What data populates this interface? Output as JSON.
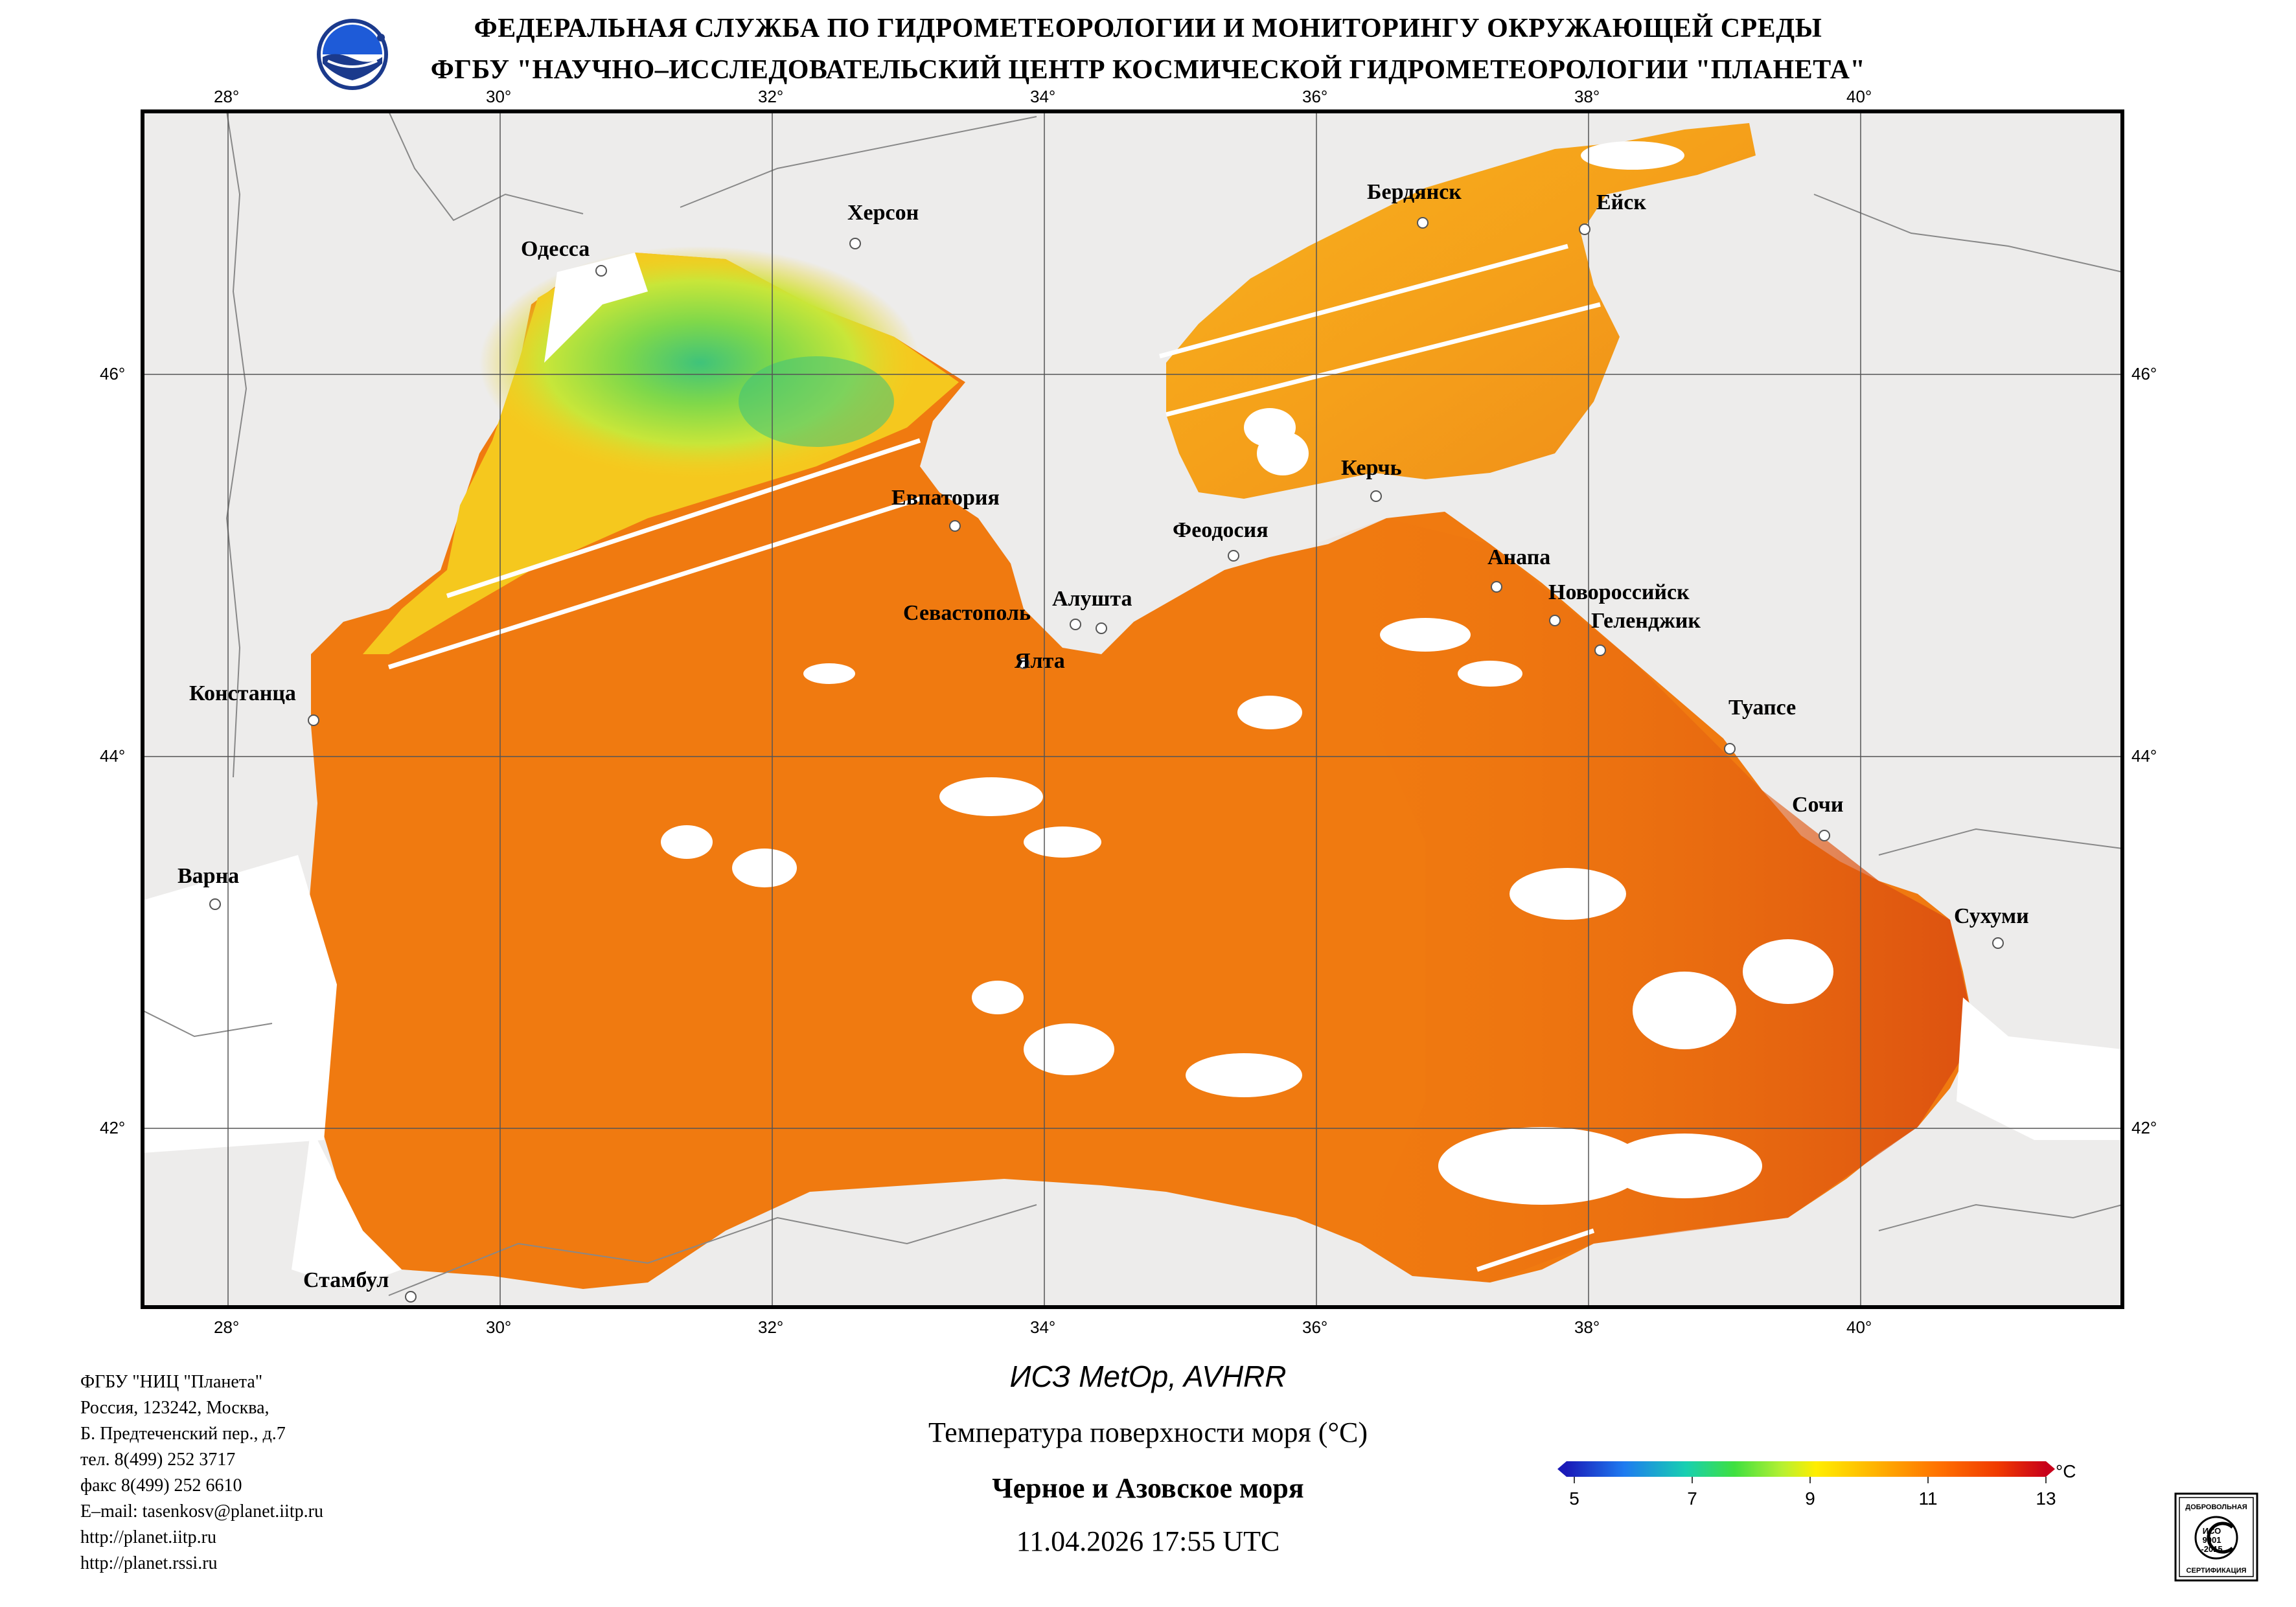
{
  "header": {
    "line1": "ФЕДЕРАЛЬНАЯ СЛУЖБА ПО ГИДРОМЕТЕОРОЛОГИИ И МОНИТОРИНГУ ОКРУЖАЮЩЕЙ СРЕДЫ",
    "line2": "ФГБУ \"НАУЧНО–ИССЛЕДОВАТЕЛЬСКИЙ ЦЕНТР КОСМИЧЕСКОЙ ГИДРОМЕТЕОРОЛОГИИ \"ПЛАНЕТА\""
  },
  "map": {
    "lon_labels": [
      "28°",
      "30°",
      "32°",
      "34°",
      "36°",
      "38°",
      "40°"
    ],
    "lat_labels": [
      "46°",
      "44°",
      "42°"
    ],
    "cities": [
      {
        "name": "Одесса"
      },
      {
        "name": "Херсон"
      },
      {
        "name": "Бердянск"
      },
      {
        "name": "Ейск"
      },
      {
        "name": "Евпатория"
      },
      {
        "name": "Керчь"
      },
      {
        "name": "Феодосия"
      },
      {
        "name": "Анапа"
      },
      {
        "name": "Новороссийск"
      },
      {
        "name": "Геленджик"
      },
      {
        "name": "Севастополь"
      },
      {
        "name": "Алушта"
      },
      {
        "name": "Ялта"
      },
      {
        "name": "Констанца"
      },
      {
        "name": "Туапсе"
      },
      {
        "name": "Сочи"
      },
      {
        "name": "Варна"
      },
      {
        "name": "Сухуми"
      },
      {
        "name": "Стамбул"
      }
    ],
    "colors": {
      "land": "#edeceb",
      "sea_main": "#f07a10",
      "sea_warm": "#e2560e",
      "sea_cool": "#f5b31c",
      "sea_cold": "#c8e639",
      "sea_coldest": "#3fc37a",
      "cloud": "#ffffff"
    }
  },
  "footer": {
    "org_lines": [
      "ФГБУ \"НИЦ \"Планета\"",
      "Россия, 123242, Москва,",
      "Б. Предтеченский пер., д.7",
      "тел. 8(499) 252 3717",
      "факс 8(499) 252 6610",
      "E–mail: tasenkosv@planet.iitp.ru",
      "http://planet.iitp.ru",
      "http://planet.rssi.ru"
    ],
    "satellite": "ИСЗ MetOp, AVHRR",
    "parameter": "Температура поверхности моря (°C)",
    "region": "Черное и Азовское моря",
    "datetime": "11.04.2026 17:55 UTC"
  },
  "legend": {
    "unit": "°C",
    "ticks": [
      "5",
      "7",
      "9",
      "11",
      "13"
    ],
    "min": 5,
    "max": 13,
    "colors": [
      "#1a1ab8",
      "#1e7bf0",
      "#18d0b0",
      "#3fe040",
      "#b6f032",
      "#ffee00",
      "#ffb000",
      "#ff7000",
      "#f03a00",
      "#c8001a"
    ]
  },
  "stamp": {
    "top": "ДОБРОВОЛЬНАЯ",
    "mid": "ИСО 9001-2015",
    "bottom": "СЕРТИФИКАЦИЯ"
  }
}
